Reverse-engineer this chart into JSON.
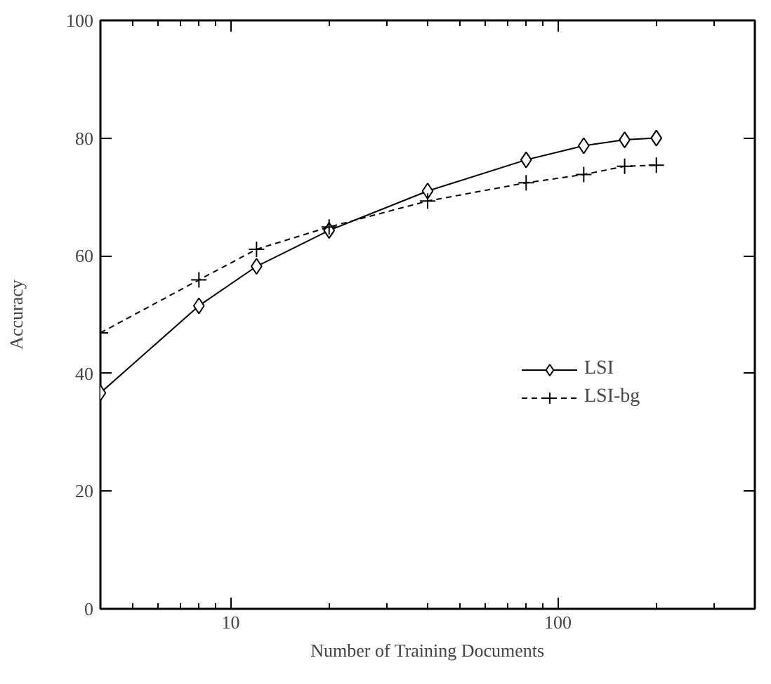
{
  "chart_data": {
    "type": "line",
    "xlabel": "Number of Training Documents",
    "ylabel": "Accuracy",
    "log": "x",
    "x": [
      4,
      8,
      12,
      20,
      40,
      80,
      120,
      160,
      200
    ],
    "series": [
      {
        "name": "LSI",
        "color": "#000000",
        "marker": "diamond",
        "line_style": "solid",
        "values": [
          36.7,
          51.5,
          58.2,
          64.3,
          71.0,
          76.3,
          78.7,
          79.7,
          80.0
        ]
      },
      {
        "name": "LSI-bg",
        "color": "#000000",
        "marker": "cross",
        "line_style": "dashed",
        "values": [
          46.9,
          55.9,
          61.1,
          64.9,
          69.3,
          72.4,
          73.8,
          75.2,
          75.4
        ]
      }
    ],
    "xlim": [
      4,
      400
    ],
    "ylim": [
      0,
      100
    ],
    "xticks": [
      {
        "value": 5,
        "label": null
      },
      {
        "value": 6,
        "label": null
      },
      {
        "value": 7,
        "label": null
      },
      {
        "value": 8,
        "label": null
      },
      {
        "value": 9,
        "label": null
      },
      10,
      {
        "value": 20,
        "label": null
      },
      {
        "value": 30,
        "label": null
      },
      {
        "value": 40,
        "label": null
      },
      {
        "value": 50,
        "label": null
      },
      {
        "value": 60,
        "label": null
      },
      {
        "value": 70,
        "label": null
      },
      {
        "value": 80,
        "label": null
      },
      {
        "value": 90,
        "label": null
      },
      100,
      {
        "value": 200,
        "label": null
      },
      {
        "value": 300,
        "label": null
      }
    ],
    "yticks": [
      0,
      20,
      40,
      60,
      80,
      100
    ],
    "grid": false,
    "legend": "right"
  }
}
